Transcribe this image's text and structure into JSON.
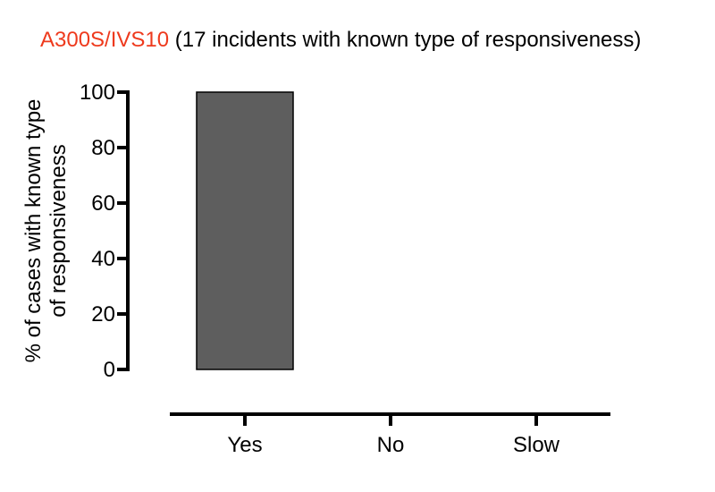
{
  "chart_data": {
    "type": "bar",
    "title_highlight": "A300S/IVS10",
    "title_rest": " (17 incidents with known type of responsiveness)",
    "ylabel_line1": "% of cases with  known type",
    "ylabel_line2": "of responsiveness",
    "xlabel": "",
    "categories": [
      "Yes",
      "No",
      "Slow"
    ],
    "values": [
      100,
      0,
      0
    ],
    "ylim": [
      0,
      100
    ],
    "yticks": [
      "0",
      "20",
      "40",
      "60",
      "80",
      "100"
    ],
    "grid": false,
    "legend": "none"
  },
  "colors": {
    "title_highlight": "#ee3a1d",
    "title_rest": "#000000",
    "bar_fill": "#5e5e5e",
    "bar_stroke": "#000000",
    "axis": "#000000"
  }
}
